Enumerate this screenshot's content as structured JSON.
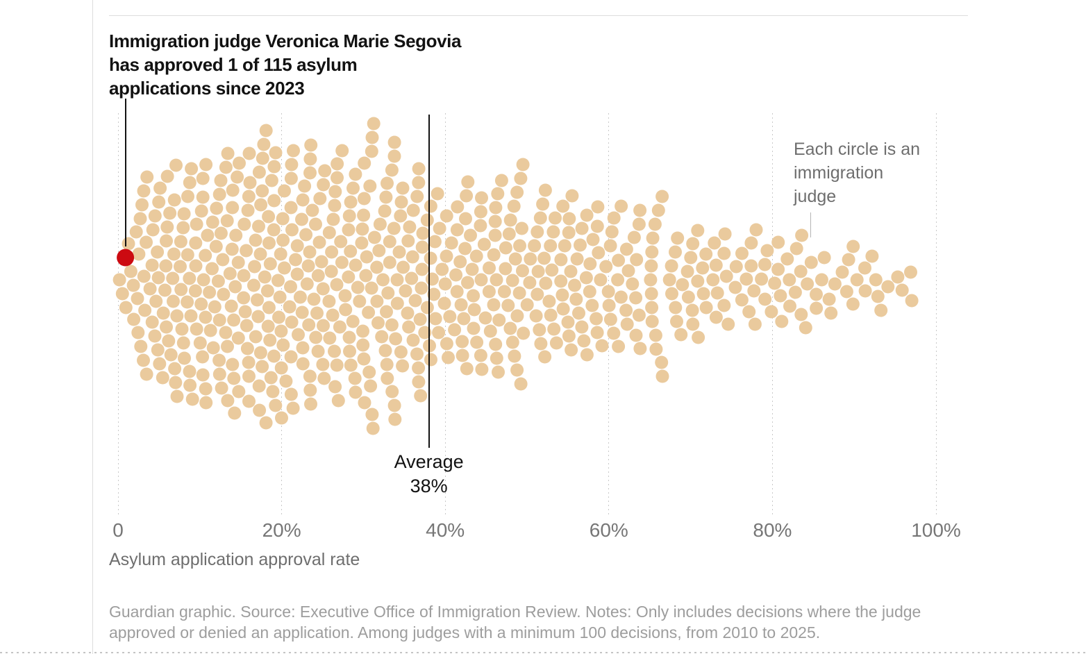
{
  "chart_data": {
    "type": "beeswarm",
    "title": "Immigration judge Veronica Marie Segovia has approved 1 of 115 asylum applications since 2023",
    "title_lines": [
      "Immigration judge Veronica Marie Segovia",
      "has approved 1 of 115 asylum",
      "applications since 2023"
    ],
    "annotation": "Each circle is an immigration judge",
    "annotation_lines": [
      "Each circle is an",
      "immigration",
      "judge"
    ],
    "average": {
      "value_pct": 38,
      "label_top": "Average",
      "label_bottom": "38%"
    },
    "x_axis": {
      "label": "Asylum application approval rate",
      "tick_labels": [
        "0",
        "20%",
        "40%",
        "60%",
        "80%",
        "100%"
      ],
      "tick_values": [
        0,
        20,
        40,
        60,
        80,
        100
      ],
      "range_pct": [
        0,
        100
      ],
      "gridlines": "dotted-vertical"
    },
    "highlight": {
      "judge_name": "Veronica Marie Segovia",
      "approved": 1,
      "applications": 115,
      "since_year": 2023,
      "approval_rate_pct": 0.9,
      "color": "#cc0a11"
    },
    "dots": {
      "color": "#eaca9d",
      "meaning": "each circle is one immigration judge"
    },
    "histogram": {
      "bin_start_pct": 0,
      "bin_width_pct": 2,
      "counts": [
        6,
        16,
        18,
        19,
        20,
        20,
        21,
        20,
        22,
        25,
        21,
        20,
        19,
        19,
        21,
        20,
        20,
        18,
        18,
        13,
        15,
        15,
        14,
        15,
        16,
        13,
        13,
        14,
        12,
        11,
        10,
        10,
        12,
        9,
        8,
        9,
        7,
        6,
        7,
        7,
        7,
        6,
        6,
        4,
        4,
        4,
        4,
        3,
        2,
        0
      ]
    }
  },
  "footer": {
    "lines": [
      "Guardian graphic. Source: Executive Office of Immigration Review. Notes: Only includes decisions where the judge",
      "approved or denied an application. Among judges with a minimum 100 decisions, from 2010 to 2025."
    ]
  }
}
